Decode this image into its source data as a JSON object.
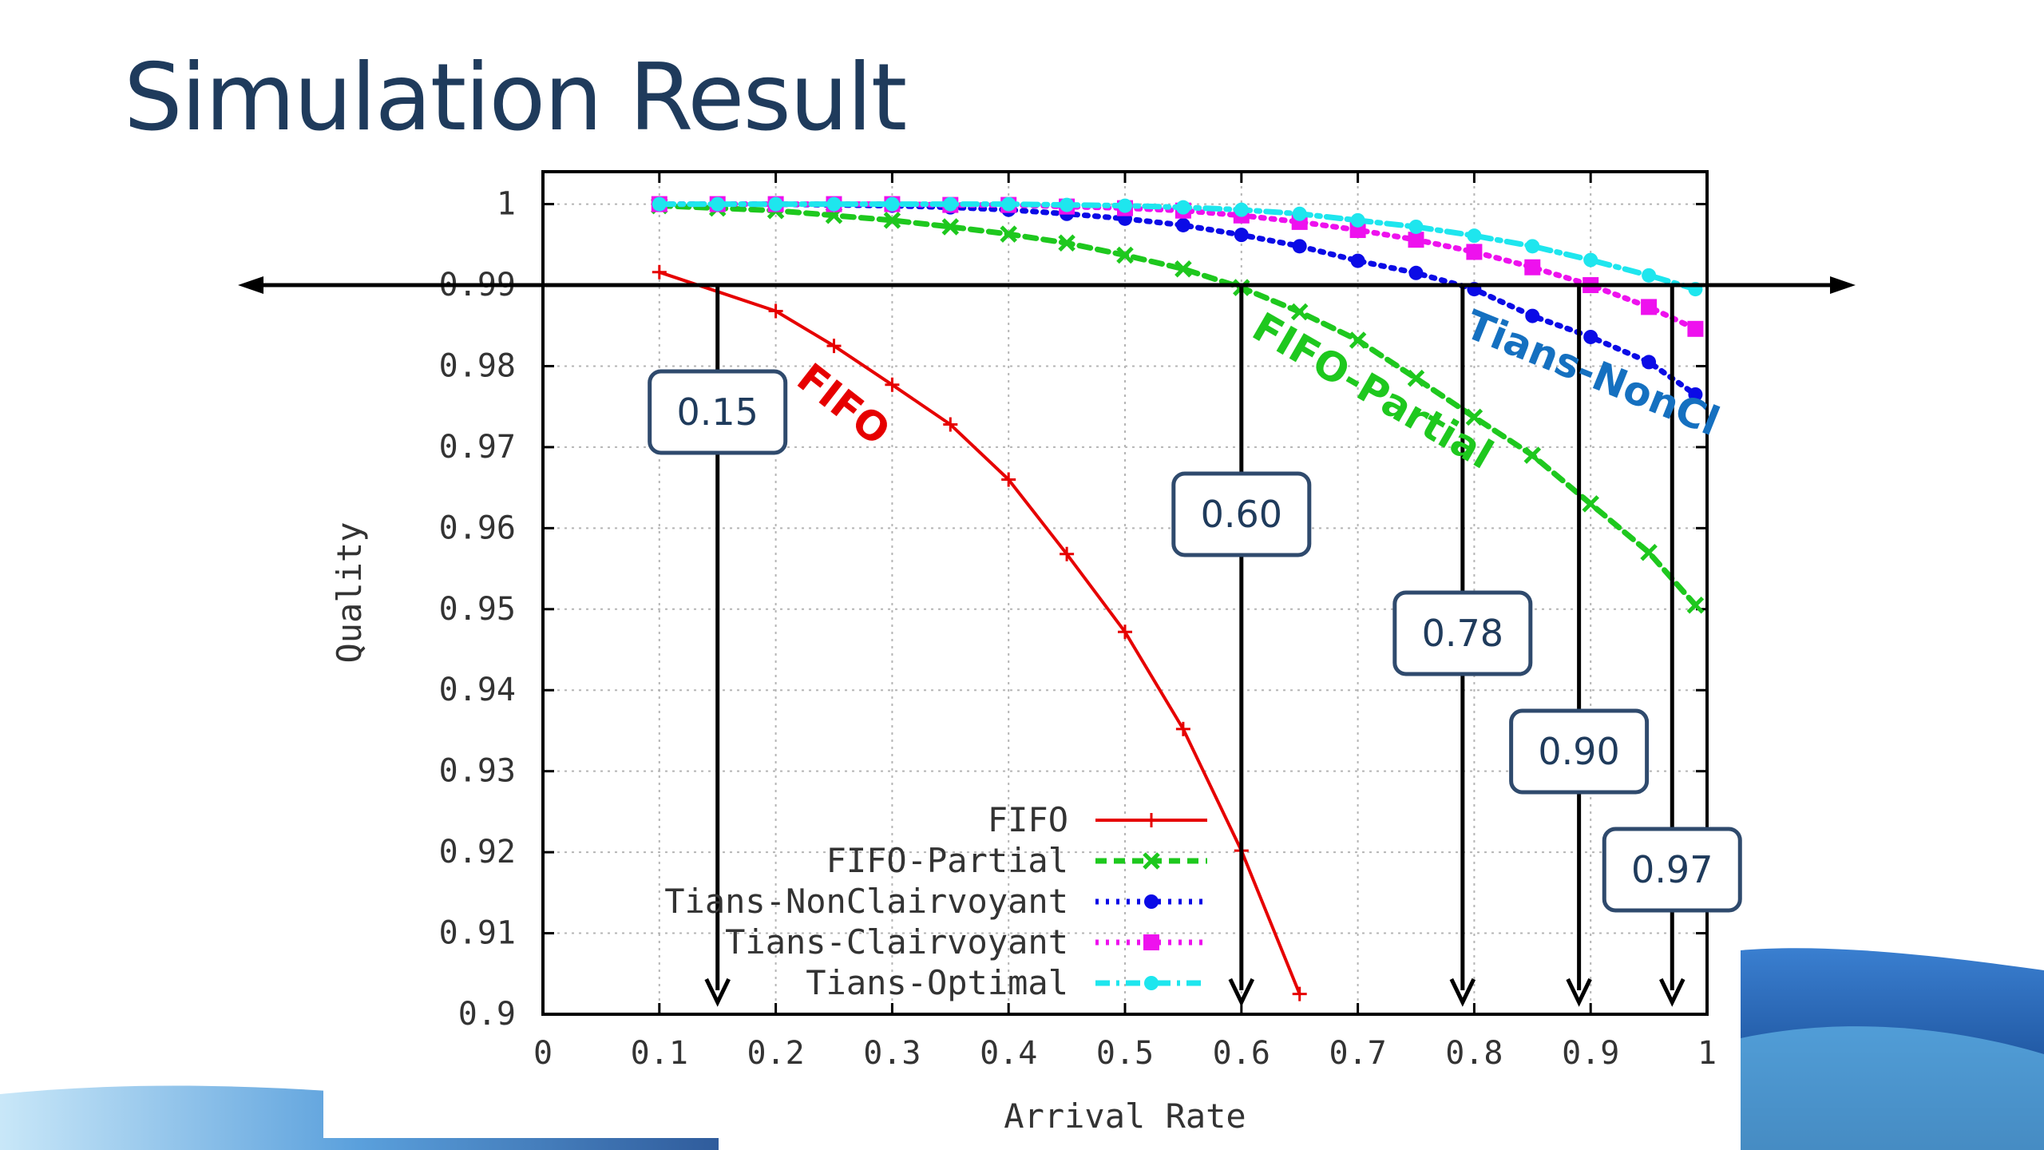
{
  "slide": {
    "title": "Simulation Result"
  },
  "chart_data": {
    "type": "line",
    "xlabel": "Arrival Rate",
    "ylabel": "Quality",
    "xlim": [
      0,
      1
    ],
    "ylim": [
      0.9,
      1.004
    ],
    "x_ticks": [
      "0",
      "0.1",
      "0.2",
      "0.3",
      "0.4",
      "0.5",
      "0.6",
      "0.7",
      "0.8",
      "0.9",
      "1"
    ],
    "y_ticks": [
      "0.9",
      "0.91",
      "0.92",
      "0.93",
      "0.94",
      "0.95",
      "0.96",
      "0.97",
      "0.98",
      "0.99",
      "1"
    ],
    "grid": true,
    "legend_position": "bottom-left",
    "series": [
      {
        "name": "FIFO",
        "color": "#e60000",
        "style": "solid",
        "marker": "plus",
        "x": [
          0.1,
          0.2,
          0.25,
          0.3,
          0.35,
          0.4,
          0.45,
          0.5,
          0.55,
          0.6,
          0.65
        ],
        "y": [
          0.9916,
          0.9868,
          0.9825,
          0.9777,
          0.9728,
          0.966,
          0.9568,
          0.9472,
          0.9352,
          0.9202,
          0.9025
        ]
      },
      {
        "name": "FIFO-Partial",
        "color": "#1ec81e",
        "style": "dashed",
        "marker": "cross",
        "x": [
          0.1,
          0.15,
          0.2,
          0.25,
          0.3,
          0.35,
          0.4,
          0.45,
          0.5,
          0.55,
          0.6,
          0.65,
          0.7,
          0.75,
          0.8,
          0.85,
          0.9,
          0.95,
          0.99
        ],
        "y": [
          0.9998,
          0.9995,
          0.9992,
          0.9986,
          0.998,
          0.9972,
          0.9963,
          0.9952,
          0.9937,
          0.992,
          0.9897,
          0.9867,
          0.9832,
          0.9785,
          0.9737,
          0.969,
          0.963,
          0.957,
          0.9505
        ]
      },
      {
        "name": "Tians-NonClairvoyant",
        "color": "#0b0be6",
        "style": "dotted",
        "marker": "dot",
        "x": [
          0.1,
          0.15,
          0.2,
          0.25,
          0.3,
          0.35,
          0.4,
          0.45,
          0.5,
          0.55,
          0.6,
          0.65,
          0.7,
          0.75,
          0.8,
          0.85,
          0.9,
          0.95,
          0.99
        ],
        "y": [
          1.0,
          1.0,
          1.0,
          0.9999,
          0.9998,
          0.9996,
          0.9993,
          0.9988,
          0.9982,
          0.9974,
          0.9962,
          0.9948,
          0.993,
          0.9915,
          0.9895,
          0.9862,
          0.9836,
          0.9805,
          0.9765
        ]
      },
      {
        "name": "Tians-Clairvoyant",
        "color": "#ee11ee",
        "style": "dotted",
        "marker": "square",
        "x": [
          0.1,
          0.15,
          0.2,
          0.25,
          0.3,
          0.35,
          0.4,
          0.45,
          0.5,
          0.55,
          0.6,
          0.65,
          0.7,
          0.75,
          0.8,
          0.85,
          0.9,
          0.95,
          0.99
        ],
        "y": [
          1.0,
          1.0,
          1.0,
          1.0,
          1.0,
          0.9999,
          0.9999,
          0.9997,
          0.9995,
          0.9992,
          0.9986,
          0.9978,
          0.9968,
          0.9956,
          0.9941,
          0.9922,
          0.99,
          0.9873,
          0.9846
        ]
      },
      {
        "name": "Tians-Optimal",
        "color": "#1ee6ee",
        "style": "dashdot",
        "marker": "dot",
        "x": [
          0.1,
          0.15,
          0.2,
          0.25,
          0.3,
          0.35,
          0.4,
          0.45,
          0.5,
          0.55,
          0.6,
          0.65,
          0.7,
          0.75,
          0.8,
          0.85,
          0.9,
          0.95,
          0.99
        ],
        "y": [
          1.0,
          1.0,
          1.0,
          1.0,
          1.0,
          1.0,
          1.0,
          0.9999,
          0.9998,
          0.9996,
          0.9993,
          0.9988,
          0.998,
          0.9972,
          0.9961,
          0.9948,
          0.9931,
          0.9912,
          0.9895
        ]
      }
    ],
    "threshold_line": {
      "y": 0.99
    },
    "callouts": [
      {
        "label": "0.15",
        "x": 0.15
      },
      {
        "label": "0.60",
        "x": 0.6
      },
      {
        "label": "0.78",
        "x": 0.79
      },
      {
        "label": "0.90",
        "x": 0.89
      },
      {
        "label": "0.97",
        "x": 0.97
      }
    ],
    "curve_labels": [
      {
        "text": "FIFO",
        "color": "#e60000"
      },
      {
        "text": "FIFO-Partial",
        "color": "#1ec81e"
      },
      {
        "text": "Tians-NonCl",
        "color": "#1570c0"
      }
    ]
  }
}
